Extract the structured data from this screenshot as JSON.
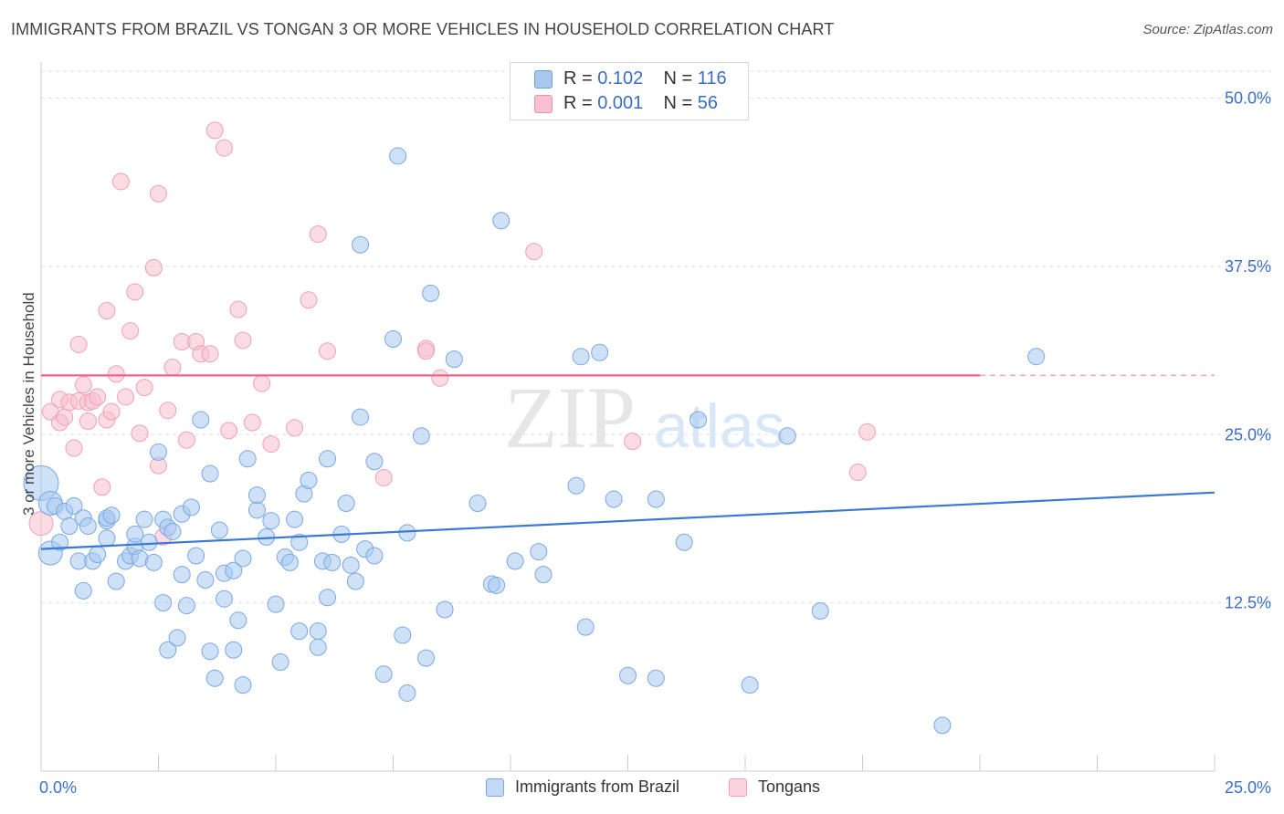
{
  "title": "IMMIGRANTS FROM BRAZIL VS TONGAN 3 OR MORE VEHICLES IN HOUSEHOLD CORRELATION CHART",
  "source": "Source: ZipAtlas.com",
  "watermark": {
    "zip": "ZIP",
    "atlas": "atlas"
  },
  "legend": {
    "r_label": "R =",
    "n_label": "N =",
    "items": [
      {
        "r": "0.102",
        "n": "116",
        "color": "#a8c8f0",
        "border": "#6a9fe0"
      },
      {
        "r": "0.001",
        "n": "56",
        "color": "#f8c0d0",
        "border": "#f090a8"
      }
    ]
  },
  "bottom_legend": [
    {
      "label": "Immigrants from Brazil",
      "color": "#c3d9f5",
      "border": "#7aa8e6"
    },
    {
      "label": "Tongans",
      "color": "#fbd3df",
      "border": "#f0a0b8"
    }
  ],
  "chart_data": {
    "type": "scatter",
    "ylabel": "3 or more Vehicles in Household",
    "xlabel": "",
    "xlim": [
      0,
      25
    ],
    "ylim": [
      0,
      52
    ],
    "x_tick_labels": [
      "0.0%",
      "25.0%"
    ],
    "y_ticks": [
      12.5,
      25.0,
      37.5,
      50.0
    ],
    "y_tick_labels": [
      "12.5%",
      "25.0%",
      "37.5%",
      "50.0%"
    ],
    "grid": true,
    "colors": {
      "brazil": "#3b78d4",
      "tongan": "#e9668c",
      "tick_label": "#3b6fc7",
      "grid": "#e0e0e0"
    },
    "series": [
      {
        "name": "Immigrants from Brazil",
        "fill": "#a8c8f0",
        "stroke": "#7aa8e6",
        "trend": {
          "x": [
            0,
            25
          ],
          "y": [
            16.5,
            20.7
          ]
        },
        "points": [
          [
            0.0,
            21.4
          ],
          [
            0.2,
            19.9
          ],
          [
            0.3,
            19.7
          ],
          [
            0.2,
            16.2
          ],
          [
            0.4,
            17.0
          ],
          [
            0.5,
            19.3
          ],
          [
            0.6,
            18.2
          ],
          [
            0.7,
            19.7
          ],
          [
            0.8,
            15.6
          ],
          [
            0.9,
            18.8
          ],
          [
            0.9,
            13.4
          ],
          [
            1.0,
            18.2
          ],
          [
            1.1,
            15.6
          ],
          [
            1.2,
            16.1
          ],
          [
            1.4,
            18.6
          ],
          [
            1.4,
            18.8
          ],
          [
            1.4,
            17.3
          ],
          [
            1.5,
            19.0
          ],
          [
            1.6,
            14.1
          ],
          [
            1.8,
            15.6
          ],
          [
            1.9,
            16.0
          ],
          [
            2.0,
            16.7
          ],
          [
            2.0,
            17.6
          ],
          [
            2.1,
            15.8
          ],
          [
            2.2,
            18.7
          ],
          [
            2.3,
            17.0
          ],
          [
            2.4,
            15.5
          ],
          [
            2.5,
            23.7
          ],
          [
            2.6,
            12.5
          ],
          [
            2.6,
            18.7
          ],
          [
            2.7,
            9.0
          ],
          [
            2.7,
            18.1
          ],
          [
            2.8,
            17.8
          ],
          [
            2.9,
            9.9
          ],
          [
            3.0,
            14.6
          ],
          [
            3.0,
            19.1
          ],
          [
            3.1,
            12.3
          ],
          [
            3.2,
            19.6
          ],
          [
            3.3,
            16.0
          ],
          [
            3.4,
            26.1
          ],
          [
            3.5,
            14.2
          ],
          [
            3.6,
            8.9
          ],
          [
            3.6,
            22.1
          ],
          [
            3.7,
            6.9
          ],
          [
            3.8,
            17.9
          ],
          [
            3.9,
            14.7
          ],
          [
            3.9,
            12.8
          ],
          [
            4.1,
            9.0
          ],
          [
            4.1,
            14.9
          ],
          [
            4.2,
            11.2
          ],
          [
            4.3,
            15.8
          ],
          [
            4.3,
            6.4
          ],
          [
            4.4,
            23.2
          ],
          [
            4.6,
            19.4
          ],
          [
            4.6,
            20.5
          ],
          [
            4.8,
            17.4
          ],
          [
            4.9,
            18.6
          ],
          [
            5.0,
            12.4
          ],
          [
            5.1,
            8.1
          ],
          [
            5.2,
            15.9
          ],
          [
            5.3,
            15.5
          ],
          [
            5.4,
            18.7
          ],
          [
            5.5,
            10.4
          ],
          [
            5.5,
            17.0
          ],
          [
            5.6,
            20.6
          ],
          [
            5.7,
            21.6
          ],
          [
            5.9,
            10.4
          ],
          [
            5.9,
            9.2
          ],
          [
            6.0,
            15.6
          ],
          [
            6.1,
            23.2
          ],
          [
            6.1,
            12.9
          ],
          [
            6.2,
            15.5
          ],
          [
            6.4,
            17.6
          ],
          [
            6.5,
            19.9
          ],
          [
            6.6,
            15.3
          ],
          [
            6.7,
            14.1
          ],
          [
            6.8,
            26.3
          ],
          [
            6.8,
            39.1
          ],
          [
            6.9,
            16.5
          ],
          [
            7.1,
            16.0
          ],
          [
            7.1,
            23.0
          ],
          [
            7.3,
            7.2
          ],
          [
            7.5,
            32.1
          ],
          [
            7.6,
            45.7
          ],
          [
            7.7,
            10.1
          ],
          [
            7.8,
            17.7
          ],
          [
            7.8,
            5.8
          ],
          [
            8.1,
            24.9
          ],
          [
            8.2,
            8.4
          ],
          [
            8.3,
            35.5
          ],
          [
            8.6,
            12.0
          ],
          [
            8.8,
            30.6
          ],
          [
            9.3,
            19.9
          ],
          [
            9.6,
            13.9
          ],
          [
            9.7,
            13.8
          ],
          [
            9.8,
            40.9
          ],
          [
            10.1,
            15.6
          ],
          [
            10.6,
            16.3
          ],
          [
            10.7,
            14.6
          ],
          [
            11.4,
            21.2
          ],
          [
            11.5,
            30.8
          ],
          [
            11.6,
            10.7
          ],
          [
            11.9,
            31.1
          ],
          [
            12.2,
            20.2
          ],
          [
            12.5,
            7.1
          ],
          [
            13.1,
            20.2
          ],
          [
            13.1,
            6.9
          ],
          [
            13.7,
            17.0
          ],
          [
            14.0,
            26.1
          ],
          [
            15.1,
            6.4
          ],
          [
            15.9,
            24.9
          ],
          [
            16.6,
            11.9
          ],
          [
            19.2,
            3.4
          ],
          [
            21.2,
            30.8
          ]
        ]
      },
      {
        "name": "Tongans",
        "fill": "#f8c0d0",
        "stroke": "#f0a0b8",
        "trend": {
          "x": [
            0,
            20
          ],
          "y": [
            29.4,
            29.4
          ]
        },
        "trend_dashed": {
          "x": [
            20,
            25
          ],
          "y": [
            29.4,
            29.4
          ]
        },
        "points": [
          [
            0.0,
            18.4
          ],
          [
            0.2,
            26.7
          ],
          [
            0.4,
            25.9
          ],
          [
            0.4,
            27.6
          ],
          [
            0.5,
            26.3
          ],
          [
            0.6,
            27.4
          ],
          [
            0.7,
            24.0
          ],
          [
            0.8,
            31.7
          ],
          [
            0.8,
            27.5
          ],
          [
            0.9,
            28.7
          ],
          [
            1.0,
            27.4
          ],
          [
            1.0,
            26.0
          ],
          [
            1.1,
            27.5
          ],
          [
            1.2,
            27.8
          ],
          [
            1.3,
            21.1
          ],
          [
            1.4,
            34.2
          ],
          [
            1.4,
            26.1
          ],
          [
            1.5,
            26.7
          ],
          [
            1.6,
            29.5
          ],
          [
            1.7,
            43.8
          ],
          [
            1.8,
            27.8
          ],
          [
            1.9,
            32.7
          ],
          [
            2.0,
            35.6
          ],
          [
            2.1,
            25.1
          ],
          [
            2.2,
            28.5
          ],
          [
            2.4,
            37.4
          ],
          [
            2.5,
            42.9
          ],
          [
            2.5,
            22.7
          ],
          [
            2.6,
            17.4
          ],
          [
            2.7,
            26.8
          ],
          [
            2.8,
            30.0
          ],
          [
            3.0,
            31.9
          ],
          [
            3.1,
            24.6
          ],
          [
            3.3,
            31.9
          ],
          [
            3.4,
            31.0
          ],
          [
            3.6,
            31.0
          ],
          [
            3.7,
            47.6
          ],
          [
            3.9,
            46.3
          ],
          [
            4.0,
            25.3
          ],
          [
            4.2,
            34.3
          ],
          [
            4.3,
            32.0
          ],
          [
            4.5,
            25.9
          ],
          [
            4.7,
            28.8
          ],
          [
            4.9,
            24.3
          ],
          [
            5.4,
            25.5
          ],
          [
            5.7,
            35.0
          ],
          [
            5.9,
            39.9
          ],
          [
            6.1,
            31.2
          ],
          [
            7.3,
            21.8
          ],
          [
            8.2,
            31.4
          ],
          [
            8.2,
            31.2
          ],
          [
            8.5,
            29.2
          ],
          [
            10.5,
            38.6
          ],
          [
            12.6,
            24.5
          ],
          [
            17.4,
            22.2
          ],
          [
            17.6,
            25.2
          ]
        ]
      }
    ]
  }
}
